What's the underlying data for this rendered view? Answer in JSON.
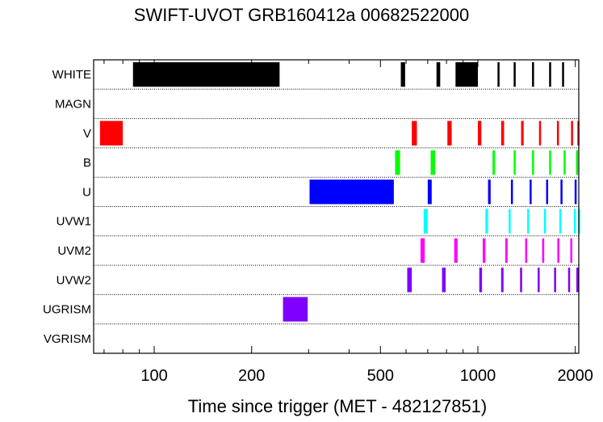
{
  "chart_data": {
    "type": "timeline",
    "title": "SWIFT-UVOT GRB160412a 00682522000",
    "xlabel": "Time since trigger (MET - 482127851)",
    "ylabel": "",
    "x_scale": "log",
    "xlim": [
      65,
      2050
    ],
    "x_ticks": [
      100,
      200,
      500,
      1000,
      2000
    ],
    "x_tick_labels": [
      "100",
      "200",
      "500",
      "1000",
      "2000"
    ],
    "rows": [
      "WHITE",
      "MAGN",
      "V",
      "B",
      "U",
      "UVW1",
      "UVM2",
      "UVW2",
      "UGRISM",
      "VGRISM"
    ],
    "series": [
      {
        "name": "WHITE",
        "color": "#000000",
        "intervals": [
          [
            86,
            244
          ],
          [
            578,
            596
          ],
          [
            745,
            765
          ],
          [
            853,
            1000
          ],
          [
            1150,
            1165
          ],
          [
            1290,
            1305
          ],
          [
            1470,
            1485
          ],
          [
            1660,
            1675
          ],
          [
            1820,
            1835
          ]
        ]
      },
      {
        "name": "MAGN",
        "color": "#000000",
        "intervals": []
      },
      {
        "name": "V",
        "color": "#ff0000",
        "intervals": [
          [
            68,
            80
          ],
          [
            625,
            648
          ],
          [
            805,
            830
          ],
          [
            1000,
            1025
          ],
          [
            1180,
            1205
          ],
          [
            1360,
            1385
          ],
          [
            1545,
            1565
          ],
          [
            1755,
            1775
          ],
          [
            1940,
            1960
          ],
          [
            2030,
            2045
          ]
        ]
      },
      {
        "name": "B",
        "color": "#00ff00",
        "intervals": [
          [
            555,
            575
          ],
          [
            715,
            738
          ],
          [
            1110,
            1130
          ],
          [
            1290,
            1308
          ],
          [
            1470,
            1490
          ],
          [
            1660,
            1680
          ],
          [
            1840,
            1860
          ],
          [
            2010,
            2030
          ]
        ]
      },
      {
        "name": "U",
        "color": "#0000ff",
        "intervals": [
          [
            302,
            550
          ],
          [
            700,
            720
          ],
          [
            1075,
            1095
          ],
          [
            1265,
            1280
          ],
          [
            1445,
            1465
          ],
          [
            1625,
            1645
          ],
          [
            1800,
            1820
          ],
          [
            1990,
            2010
          ]
        ]
      },
      {
        "name": "UVW1",
        "color": "#00ffff",
        "intervals": [
          [
            680,
            700
          ],
          [
            1055,
            1075
          ],
          [
            1245,
            1260
          ],
          [
            1420,
            1440
          ],
          [
            1600,
            1620
          ],
          [
            1785,
            1805
          ],
          [
            1980,
            2000
          ],
          [
            2040,
            2050
          ]
        ]
      },
      {
        "name": "UVM2",
        "color": "#ff00ff",
        "intervals": [
          [
            665,
            685
          ],
          [
            845,
            865
          ],
          [
            1035,
            1055
          ],
          [
            1215,
            1235
          ],
          [
            1400,
            1420
          ],
          [
            1580,
            1600
          ],
          [
            1760,
            1780
          ],
          [
            1930,
            1950
          ]
        ]
      },
      {
        "name": "UVW2",
        "color": "#7f00ff",
        "intervals": [
          [
            605,
            625
          ],
          [
            775,
            795
          ],
          [
            1010,
            1030
          ],
          [
            1180,
            1200
          ],
          [
            1350,
            1370
          ],
          [
            1530,
            1550
          ],
          [
            1720,
            1740
          ],
          [
            1900,
            1920
          ],
          [
            2015,
            2035
          ]
        ]
      },
      {
        "name": "UGRISM",
        "color": "#7f00ff",
        "intervals": [
          [
            250,
            298
          ]
        ]
      },
      {
        "name": "VGRISM",
        "color": "#000000",
        "intervals": []
      }
    ]
  },
  "colors": {
    "axis": "#000000",
    "separator": "#000000",
    "background": "#ffffff"
  }
}
